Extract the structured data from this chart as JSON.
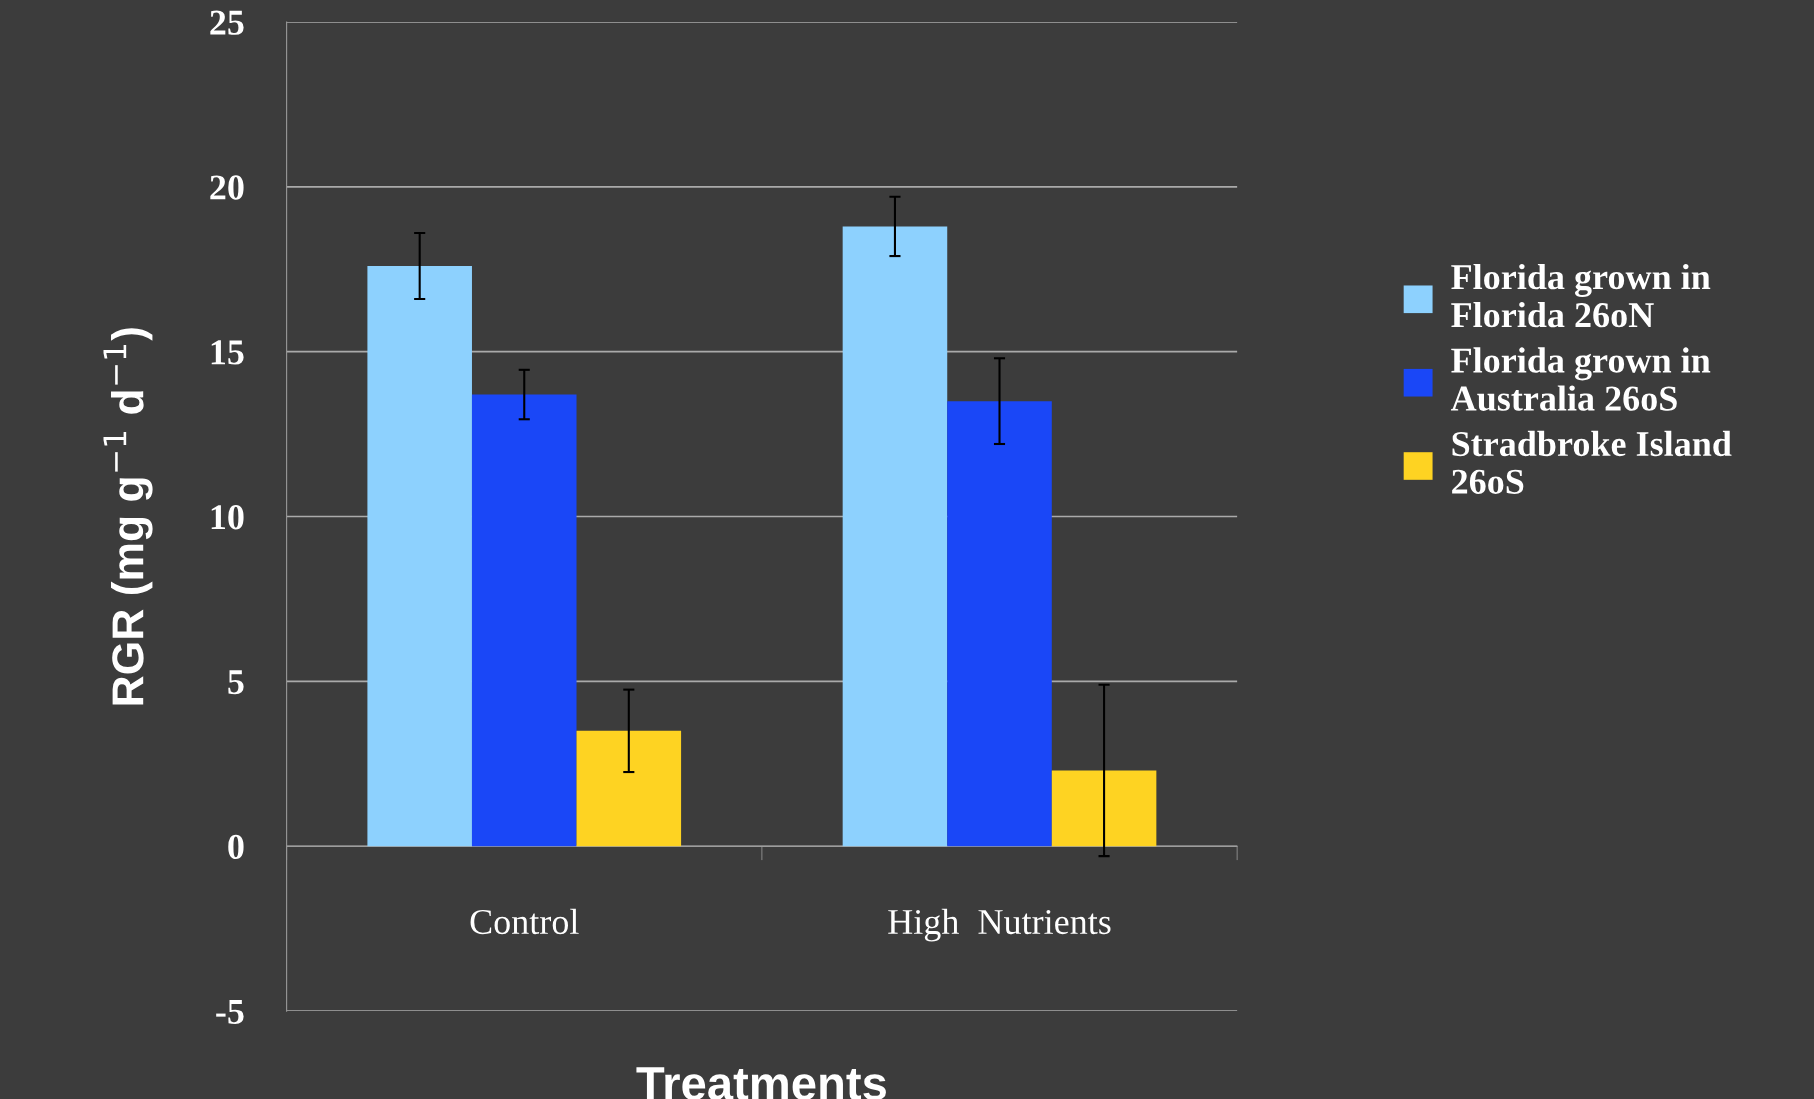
{
  "chart_data": {
    "type": "bar",
    "xlabel": "Treatments",
    "ylabel": "RGR (mg g$^{−1}$ d$^{−1}$)",
    "categories": [
      "Control",
      "High  Nutrients"
    ],
    "series": [
      {
        "name": "Florida grown in\nFlorida 26oN",
        "color": "#8dd1fe",
        "values": [
          17.6,
          18.8
        ],
        "errors": [
          1.0,
          0.9
        ]
      },
      {
        "name": "Florida grown in\nAustralia 26oS",
        "color": "#1a47f7",
        "values": [
          13.7,
          13.5
        ],
        "errors": [
          0.75,
          1.3
        ]
      },
      {
        "name": "Stradbroke Island\n26oS",
        "color": "#fed322",
        "values": [
          3.5,
          2.3
        ],
        "errors": [
          1.25,
          2.6
        ]
      }
    ],
    "ylim": [
      -5,
      25
    ],
    "yticks": [
      -5,
      0,
      5,
      10,
      15,
      20,
      25
    ],
    "grid": "y",
    "legend": "right"
  }
}
